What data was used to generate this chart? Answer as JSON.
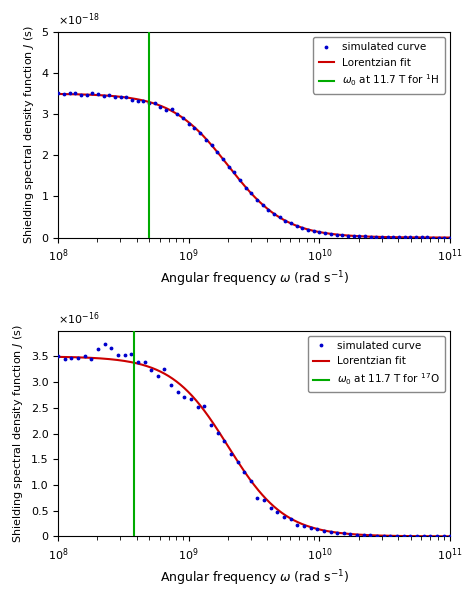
{
  "plot1": {
    "ylabel": "Shielding spectral density function $J$ (s)",
    "xlabel": "Angular frequency $\\omega$ (rad s$^{-1}$)",
    "xlim": [
      100000000.0,
      100000000000.0
    ],
    "ylim": [
      0,
      5e-18
    ],
    "yticks": [
      0,
      1e-18,
      2e-18,
      3e-18,
      4e-18,
      5e-18
    ],
    "ytick_labels": [
      "0",
      "1",
      "2",
      "3",
      "4",
      "5"
    ],
    "yexp": -18,
    "tau_c": 5e-10,
    "J0": 3.5e-18,
    "vline": 500000000.0,
    "vline_label": "$\\omega_0$ at 11.7 T for $^1$H",
    "legend_loc": "upper right"
  },
  "plot2": {
    "ylabel": "Shielding spectral density function $J$ (s)",
    "xlabel": "Angular frequency $\\omega$ (rad s$^{-1}$)",
    "xlim": [
      100000000.0,
      100000000000.0
    ],
    "ylim": [
      0,
      4e-16
    ],
    "yticks": [
      0,
      5e-17,
      1e-16,
      1.5e-16,
      2e-16,
      2.5e-16,
      3e-16,
      3.5e-16
    ],
    "ytick_labels": [
      "0",
      "0.5",
      "1.0",
      "1.5",
      "2.0",
      "2.5",
      "3.0",
      "3.5"
    ],
    "yexp": -16,
    "tau_c": 5e-10,
    "J0": 3.5e-16,
    "vline": 380000000.0,
    "vline_label": "$\\omega_0$ at 11.7 T for $^{17}$O",
    "legend_loc": "upper right"
  },
  "colors": {
    "dots": "#0000cc",
    "lorentzian": "#cc0000",
    "vline": "#00aa00",
    "bg": "#ffffff"
  }
}
